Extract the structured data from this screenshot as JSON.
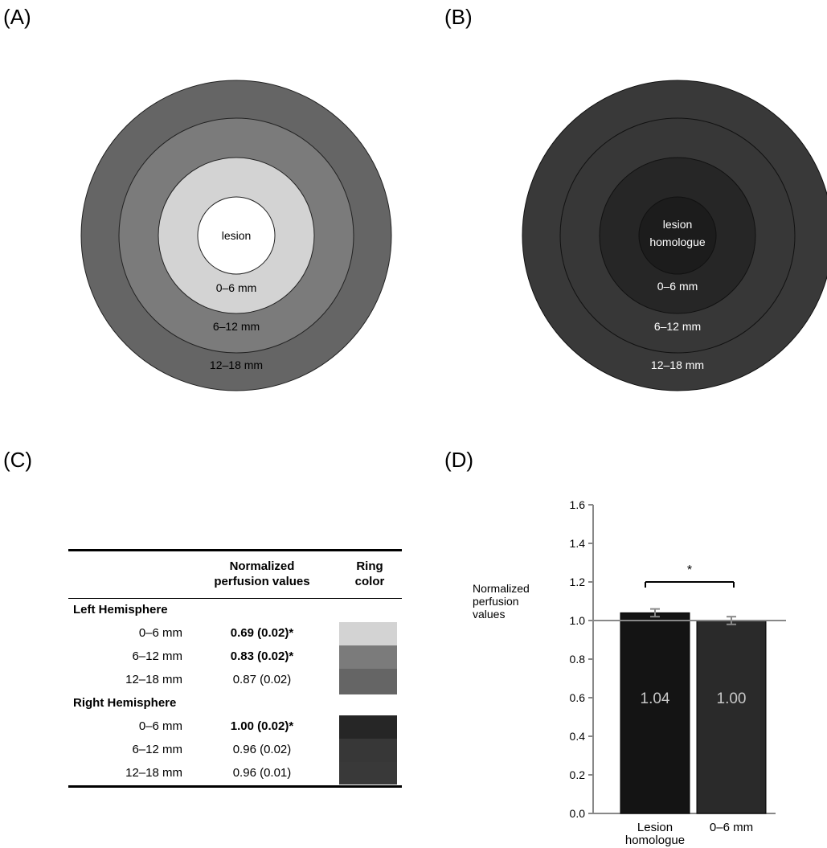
{
  "panels": {
    "a": "(A)",
    "b": "(B)",
    "c": "(C)",
    "d": "(D)"
  },
  "ring_colors": {
    "left_0_6": "#d3d3d3",
    "left_6_12": "#7b7b7b",
    "left_12_18": "#656565",
    "left_center": "#ffffff",
    "right_0_6": "#262626",
    "right_6_12": "#373737",
    "right_12_18": "#393939",
    "right_center": "#1c1c1c"
  },
  "diagram_a": {
    "center_label": "lesion",
    "ring1": "0–6 mm",
    "ring2": "6–12 mm",
    "ring3": "12–18 mm"
  },
  "diagram_b": {
    "center_label_line1": "lesion",
    "center_label_line2": "homologue",
    "ring1": "0–6 mm",
    "ring2": "6–12 mm",
    "ring3": "12–18 mm"
  },
  "table": {
    "col_perf_line1": "Normalized",
    "col_perf_line2": "perfusion values",
    "col_ring_line1": "Ring",
    "col_ring_line2": "color",
    "left_section": "Left Hemisphere",
    "right_section": "Right Hemisphere",
    "left_rows": [
      {
        "mm": "0–6 mm",
        "value": "0.69 (0.02)*"
      },
      {
        "mm": "6–12 mm",
        "value": "0.83 (0.02)*"
      },
      {
        "mm": "12–18 mm",
        "value": "0.87 (0.02)"
      }
    ],
    "right_rows": [
      {
        "mm": "0–6 mm",
        "value": "1.00 (0.02)*"
      },
      {
        "mm": "6–12 mm",
        "value": "0.96 (0.02)"
      },
      {
        "mm": "12–18 mm",
        "value": "0.96 (0.01)"
      }
    ]
  },
  "chart_data": {
    "type": "bar",
    "categories": [
      "Lesion homologue",
      "0–6 mm"
    ],
    "category_lines": [
      [
        "Lesion",
        "homologue"
      ],
      [
        "0–6 mm"
      ]
    ],
    "values": [
      1.04,
      1.0
    ],
    "errors": [
      0.02,
      0.02
    ],
    "value_labels": [
      "1.04",
      "1.00"
    ],
    "ylabel_lines": [
      "Normalized",
      "perfusion",
      "values"
    ],
    "ylim": [
      0,
      1.6
    ],
    "yticks": [
      "0.0",
      "0.2",
      "0.4",
      "0.6",
      "0.8",
      "1.0",
      "1.2",
      "1.4",
      "1.6"
    ],
    "reference_line": 1.0,
    "significance_label": "*",
    "bar_colors": [
      "#141414",
      "#2a2a2a"
    ]
  }
}
